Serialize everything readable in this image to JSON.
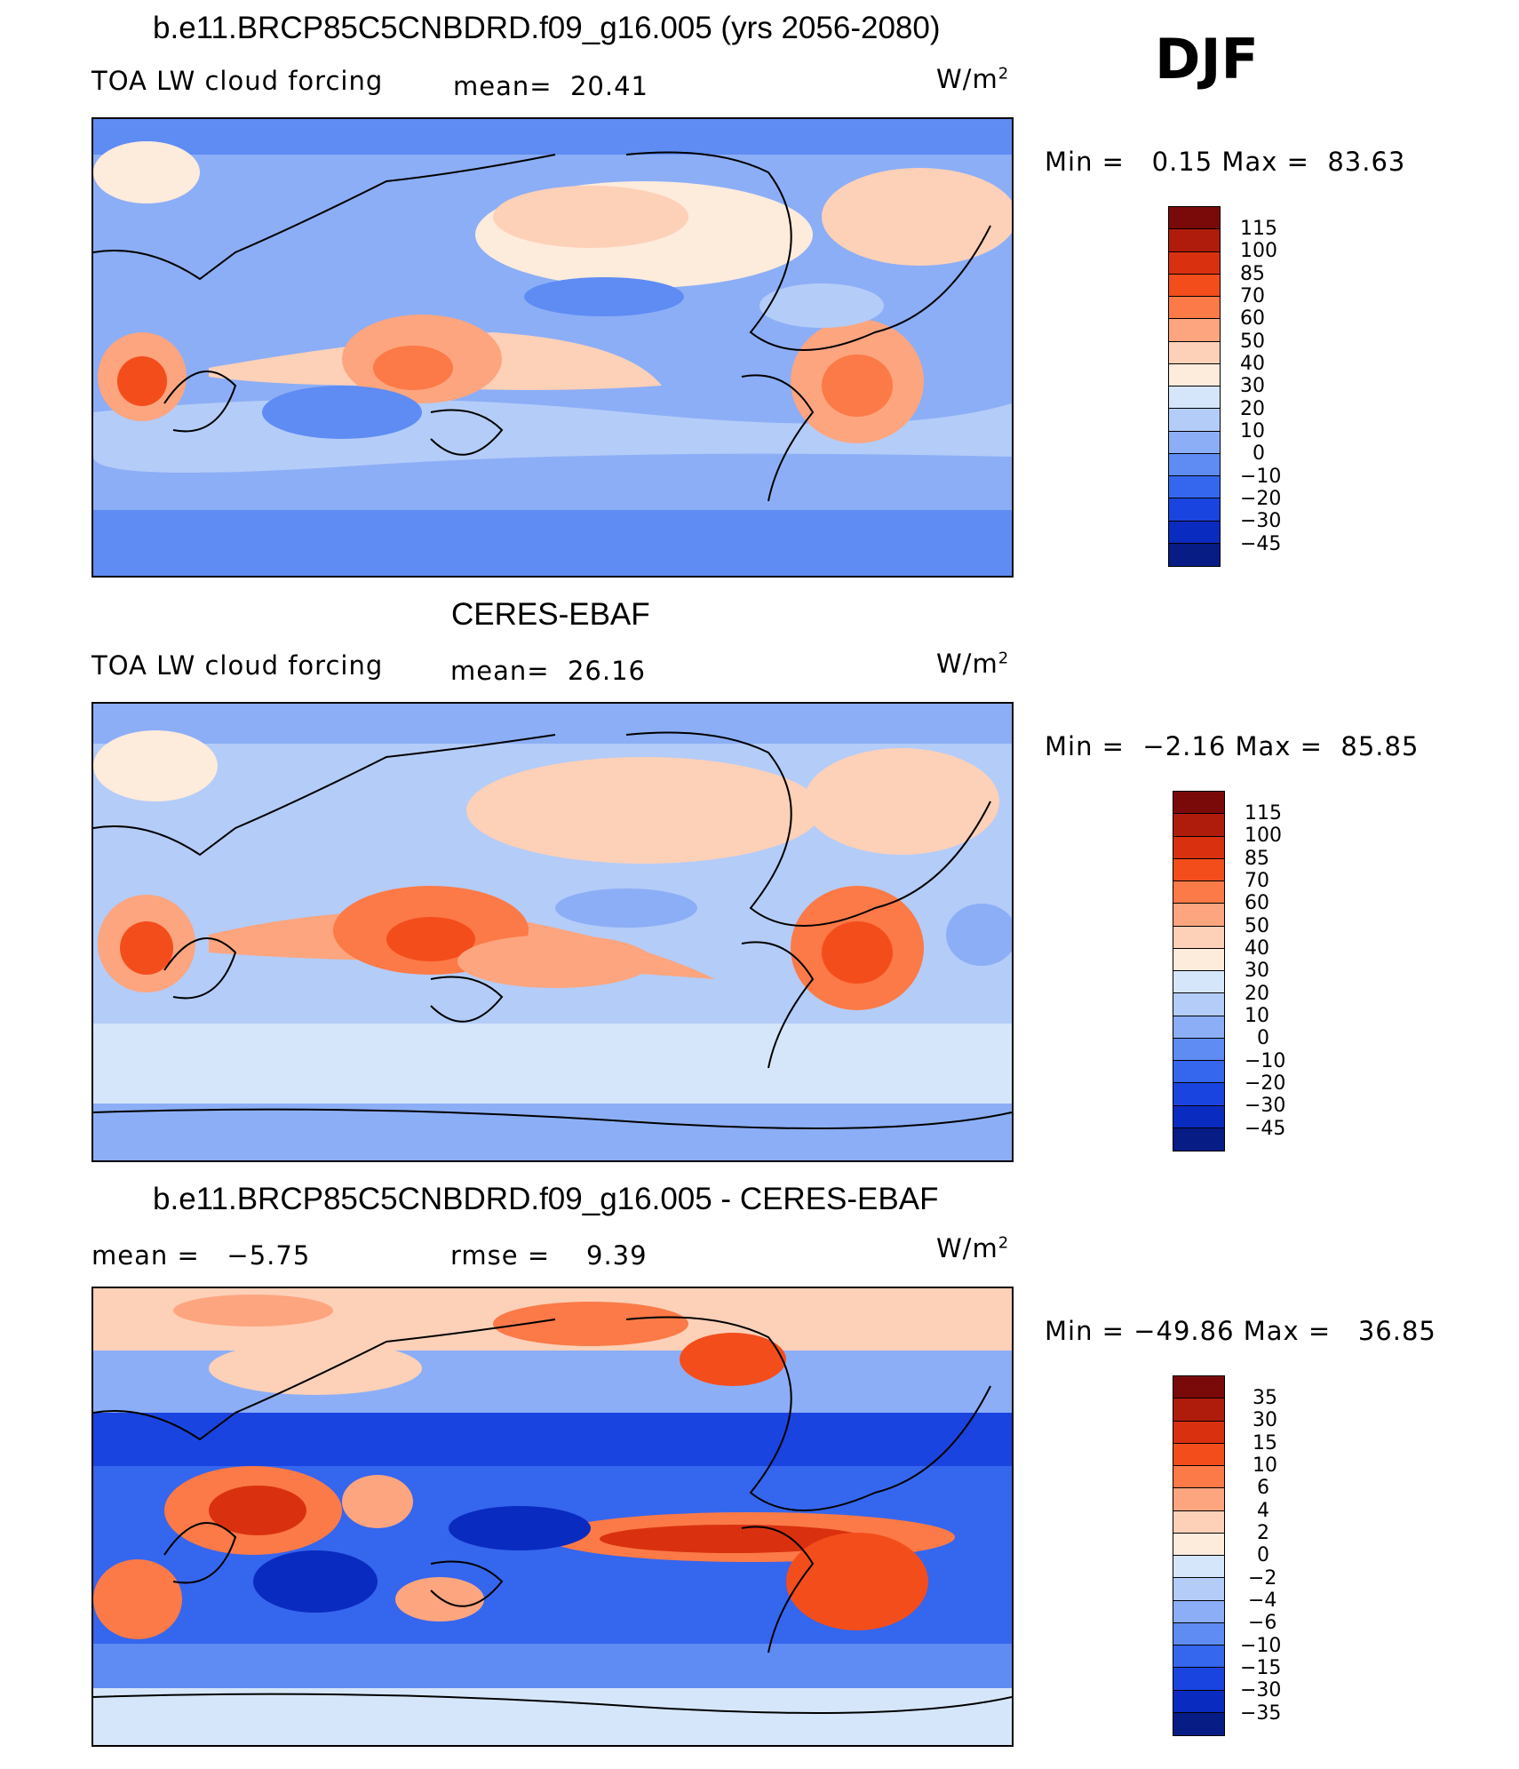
{
  "season": "DJF",
  "panels": [
    {
      "title": "b.e11.BRCP85C5CNBDRD.f09_g16.005 (yrs 2056-2080)",
      "left_label": "TOA LW cloud forcing",
      "mid_label": "mean=  20.41",
      "units": "W/m",
      "units_sup": "2",
      "minmax": "Min =   0.15 Max =  83.63"
    },
    {
      "title": "CERES-EBAF",
      "left_label": "TOA LW cloud forcing",
      "mid_label": "mean=  26.16",
      "units": "W/m",
      "units_sup": "2",
      "minmax": "Min =  −2.16 Max =  85.85"
    },
    {
      "title": "b.e11.BRCP85C5CNBDRD.f09_g16.005 - CERES-EBAF",
      "left_label": "mean =   −5.75",
      "mid_label": "rmse =    9.39",
      "units": "W/m",
      "units_sup": "2",
      "minmax": "Min = −49.86 Max =   36.85"
    }
  ],
  "colorbar_abs": {
    "labels": [
      "115",
      "100",
      "85",
      "70",
      "60",
      "50",
      "40",
      "30",
      "20",
      "10",
      "0",
      "−10",
      "−20",
      "−30",
      "−45"
    ],
    "colors": [
      "#7a0a0a",
      "#b01c0c",
      "#d9310f",
      "#f44d1c",
      "#fb7a47",
      "#fca57f",
      "#fdd0b8",
      "#fdebdc",
      "#d6e6fa",
      "#b4ccf8",
      "#8caef6",
      "#5e8cf3",
      "#3566ee",
      "#1a44e0",
      "#0a2bbf",
      "#081c86"
    ]
  },
  "colorbar_diff": {
    "labels": [
      "35",
      "30",
      "15",
      "10",
      "6",
      "4",
      "2",
      "0",
      "−2",
      "−4",
      "−6",
      "−10",
      "−15",
      "−30",
      "−35"
    ],
    "colors": [
      "#7a0a0a",
      "#b01c0c",
      "#d9310f",
      "#f44d1c",
      "#fb7a47",
      "#fca57f",
      "#fdd0b8",
      "#fdebdc",
      "#d6e6fa",
      "#b4ccf8",
      "#8caef6",
      "#5e8cf3",
      "#3566ee",
      "#1a44e0",
      "#0a2bbf",
      "#081c86"
    ]
  },
  "chart_data": [
    {
      "type": "heatmap",
      "title": "b.e11.BRCP85C5CNBDRD.f09_g16.005 (yrs 2056-2080)",
      "variable": "TOA LW cloud forcing",
      "units": "W/m2",
      "season": "DJF",
      "mean": 20.41,
      "min": 0.15,
      "max": 83.63,
      "contour_levels": [
        -45,
        -30,
        -20,
        -10,
        0,
        10,
        20,
        30,
        40,
        50,
        60,
        70,
        85,
        100,
        115
      ]
    },
    {
      "type": "heatmap",
      "title": "CERES-EBAF",
      "variable": "TOA LW cloud forcing",
      "units": "W/m2",
      "season": "DJF",
      "mean": 26.16,
      "min": -2.16,
      "max": 85.85,
      "contour_levels": [
        -45,
        -30,
        -20,
        -10,
        0,
        10,
        20,
        30,
        40,
        50,
        60,
        70,
        85,
        100,
        115
      ]
    },
    {
      "type": "heatmap",
      "title": "b.e11.BRCP85C5CNBDRD.f09_g16.005 - CERES-EBAF",
      "units": "W/m2",
      "season": "DJF",
      "mean": -5.75,
      "rmse": 9.39,
      "min": -49.86,
      "max": 36.85,
      "contour_levels": [
        -35,
        -30,
        -15,
        -10,
        -6,
        -4,
        -2,
        0,
        2,
        4,
        6,
        10,
        15,
        30,
        35
      ]
    }
  ]
}
